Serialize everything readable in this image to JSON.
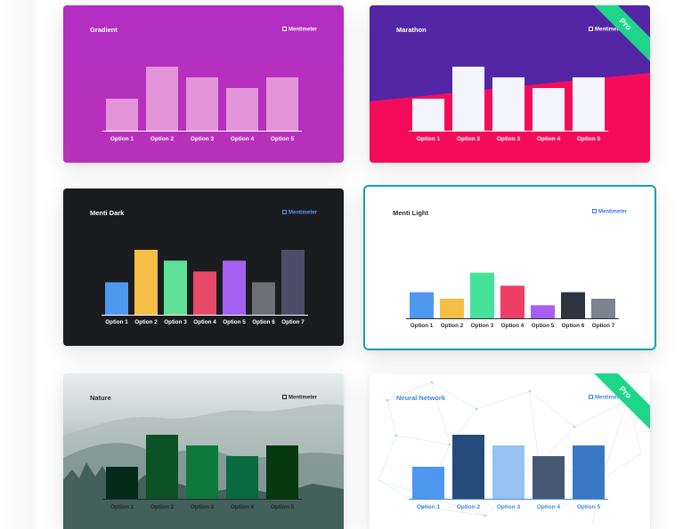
{
  "gallery": {
    "brand_name": "Mentimeter",
    "pro_badge": "Pro",
    "themes": [
      {
        "id": "c0",
        "title": "Gradient",
        "pro": false,
        "selected": false,
        "colors": {
          "title": "#ffffff",
          "brand": "#ffffff",
          "label": "#ffffff",
          "axis": "#ffffff"
        },
        "chart_data": {
          "type": "bar",
          "categories": [
            "Option 1",
            "Option 2",
            "Option 3",
            "Option 4",
            "Option 5"
          ],
          "values": [
            3,
            6,
            5,
            4,
            5
          ],
          "ylim": [
            0,
            6
          ],
          "bar_colors": [
            "#e295d9",
            "#e295d9",
            "#e295d9",
            "#e295d9",
            "#e295d9"
          ]
        }
      },
      {
        "id": "c1",
        "title": "Marathon",
        "pro": true,
        "selected": false,
        "colors": {
          "title": "#ffffff",
          "brand": "#ffffff",
          "label": "#ffffff",
          "axis": "#ffffff",
          "top_band": "#5326a5"
        },
        "chart_data": {
          "type": "bar",
          "categories": [
            "Option 1",
            "Option 2",
            "Option 3",
            "Option 4",
            "Option 5"
          ],
          "values": [
            3,
            6,
            5,
            4,
            5
          ],
          "ylim": [
            0,
            6
          ],
          "bar_colors": [
            "#f4f5fc",
            "#f4f5fc",
            "#f4f5fc",
            "#f4f5fc",
            "#f4f5fc"
          ]
        }
      },
      {
        "id": "c2",
        "title": "Menti Dark",
        "pro": false,
        "selected": false,
        "colors": {
          "title": "#ffffff",
          "brand": "#5a8ff2",
          "label": "#ffffff",
          "axis": "#ffffff"
        },
        "chart_data": {
          "type": "bar",
          "categories": [
            "Option 1",
            "Option 2",
            "Option 3",
            "Option 4",
            "Option 5",
            "Option 6",
            "Option 7"
          ],
          "values": [
            3,
            6,
            5,
            4,
            5,
            3,
            6
          ],
          "ylim": [
            0,
            6
          ],
          "bar_colors": [
            "#4f98f0",
            "#f5bf45",
            "#5ee196",
            "#e64a68",
            "#a55ff1",
            "#6c7075",
            "#4b4e66"
          ]
        }
      },
      {
        "id": "c3",
        "title": "Menti Light",
        "pro": false,
        "selected": true,
        "colors": {
          "title": "#2b2b36",
          "brand": "#3f7ce6",
          "label": "#2b2b36",
          "axis": "#2b2b36"
        },
        "chart_data": {
          "type": "bar",
          "categories": [
            "Option 1",
            "Option 2",
            "Option 3",
            "Option 4",
            "Option 5",
            "Option 6",
            "Option 7"
          ],
          "values": [
            2,
            1.5,
            3.5,
            2.5,
            1,
            2,
            1.5
          ],
          "ylim": [
            0,
            6
          ],
          "bar_colors": [
            "#4f98f0",
            "#f5bf45",
            "#45e39a",
            "#ee3e66",
            "#a85ff1",
            "#2e3340",
            "#7b8290"
          ]
        }
      },
      {
        "id": "c4",
        "title": "Nature",
        "pro": false,
        "selected": false,
        "colors": {
          "title": "#1c2826",
          "brand": "#1c2826",
          "label": "#1c2826",
          "axis": "#1c2826"
        },
        "chart_data": {
          "type": "bar",
          "categories": [
            "Option 1",
            "Option 2",
            "Option 3",
            "Option 4",
            "Option 5"
          ],
          "values": [
            3,
            6,
            5,
            4,
            5
          ],
          "ylim": [
            0,
            6
          ],
          "bar_colors": [
            "#042a1a",
            "#0c5226",
            "#0d7a3b",
            "#0a6a40",
            "#06390d"
          ]
        }
      },
      {
        "id": "c5",
        "title": "Neural Network",
        "pro": true,
        "selected": false,
        "colors": {
          "title": "#3f8ae0",
          "brand": "#3f8ae0",
          "label": "#3f8ae0",
          "axis": "#3f8ae0"
        },
        "chart_data": {
          "type": "bar",
          "categories": [
            "Option 1",
            "Option 2",
            "Option 3",
            "Option 4",
            "Option 5"
          ],
          "values": [
            3,
            6,
            5,
            4,
            5
          ],
          "ylim": [
            0,
            6
          ],
          "bar_colors": [
            "#4f96ee",
            "#264a7a",
            "#96c2f2",
            "#475972",
            "#3a78c6"
          ]
        }
      }
    ]
  }
}
